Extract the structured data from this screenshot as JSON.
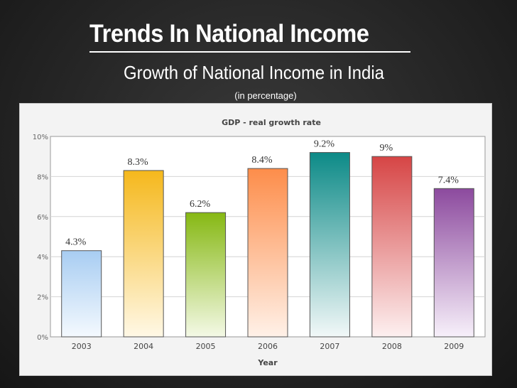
{
  "slide": {
    "title": "Trends In National Income",
    "subtitle": "Growth of National Income in India",
    "note": "(in percentage)"
  },
  "chart_data": {
    "type": "bar",
    "title": "GDP - real growth rate",
    "xlabel": "Year",
    "ylabel": "",
    "categories": [
      "2003",
      "2004",
      "2005",
      "2006",
      "2007",
      "2008",
      "2009"
    ],
    "values": [
      4.3,
      8.3,
      6.2,
      8.4,
      9.2,
      9.0,
      7.4
    ],
    "data_labels": [
      "4.3%",
      "8.3%",
      "6.2%",
      "8.4%",
      "9.2%",
      "9%",
      "7.4%"
    ],
    "ylim": [
      0,
      10
    ],
    "yticks": [
      0,
      2,
      4,
      6,
      8,
      10
    ],
    "ytick_labels": [
      "0%",
      "2%",
      "4%",
      "6%",
      "8%",
      "10%"
    ],
    "grid": true,
    "legend": "none",
    "colors": [
      [
        "#a8cdf2",
        "#f4f9fe"
      ],
      [
        "#f5b81c",
        "#fff8e6"
      ],
      [
        "#86b813",
        "#f4f9e6"
      ],
      [
        "#fd8d4a",
        "#fff1e8"
      ],
      [
        "#0c8a87",
        "#f2f8f8"
      ],
      [
        "#d64545",
        "#fdf0f0"
      ],
      [
        "#8c4a9e",
        "#f7f0fa"
      ]
    ]
  }
}
